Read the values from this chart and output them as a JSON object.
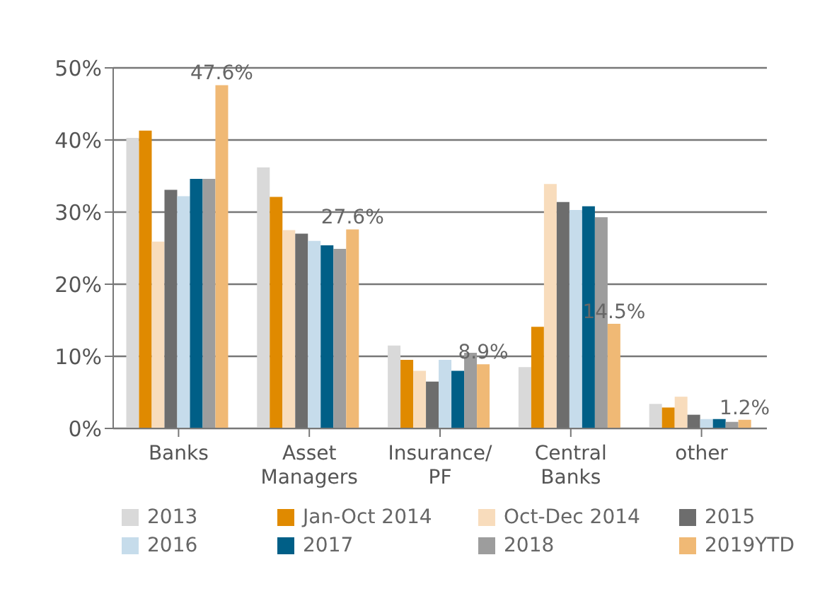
{
  "chart_data": {
    "type": "bar",
    "categories": [
      "Banks",
      "Asset\nManagers",
      "Insurance/\nPF",
      "Central\nBanks",
      "other"
    ],
    "series": [
      {
        "name": "2013",
        "color": "#d9d9d9",
        "values": [
          40.3,
          36.2,
          11.5,
          8.5,
          3.4
        ]
      },
      {
        "name": "Jan-Oct 2014",
        "color": "#e08a00",
        "values": [
          41.3,
          32.1,
          9.5,
          14.1,
          2.9
        ]
      },
      {
        "name": "Oct-Dec 2014",
        "color": "#f8dcbc",
        "values": [
          25.9,
          27.5,
          8.0,
          33.9,
          4.4
        ]
      },
      {
        "name": "2015",
        "color": "#6d6d6d",
        "values": [
          33.1,
          27.0,
          6.5,
          31.4,
          1.9
        ]
      },
      {
        "name": "2016",
        "color": "#c6dceb",
        "values": [
          32.2,
          26.0,
          9.5,
          30.3,
          1.3
        ]
      },
      {
        "name": "2017",
        "color": "#005f87",
        "values": [
          34.6,
          25.4,
          8.0,
          30.8,
          1.3
        ]
      },
      {
        "name": "2018",
        "color": "#9d9d9d",
        "values": [
          34.6,
          24.9,
          10.5,
          29.3,
          0.9
        ]
      },
      {
        "name": "2019YTD",
        "color": "#f0b975",
        "values": [
          47.6,
          27.6,
          8.9,
          14.5,
          1.2
        ],
        "value_labels": [
          "47.6%",
          "27.6%",
          "8.9%",
          "14.5%",
          "1.2%"
        ]
      }
    ],
    "ylim": [
      0,
      50
    ],
    "yticks": [
      {
        "value": 0,
        "label": "0%"
      },
      {
        "value": 10,
        "label": "10%"
      },
      {
        "value": 20,
        "label": "20%"
      },
      {
        "value": 30,
        "label": "30%"
      },
      {
        "value": 40,
        "label": "40%"
      },
      {
        "value": 50,
        "label": "50%"
      }
    ],
    "grid": "y",
    "legend": "bottom"
  }
}
